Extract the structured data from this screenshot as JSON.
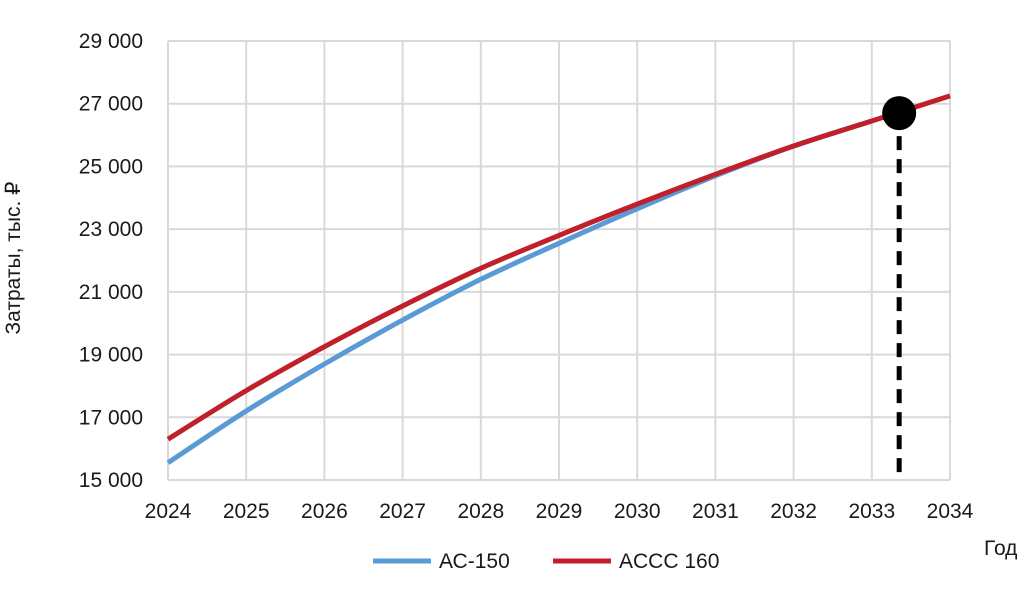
{
  "chart_data": {
    "type": "line",
    "xlabel": "Год",
    "ylabel": "Затраты, тыс. ₽",
    "xlim": [
      2024,
      2034
    ],
    "ylim": [
      15000,
      29000
    ],
    "x_ticks": [
      "2024",
      "2025",
      "2026",
      "2027",
      "2028",
      "2029",
      "2030",
      "2031",
      "2032",
      "2033",
      "2034"
    ],
    "y_ticks": [
      "15 000",
      "17 000",
      "19 000",
      "21 000",
      "23 000",
      "25 000",
      "27 000",
      "29 000"
    ],
    "grid": true,
    "legend_position": "bottom",
    "series": [
      {
        "name": "АС-150",
        "color": "#5b9bd5",
        "x": [
          2024,
          2025,
          2026,
          2027,
          2028,
          2029,
          2030,
          2031,
          2032,
          2033
        ],
        "values": [
          15550,
          17200,
          18700,
          20100,
          21400,
          22550,
          23650,
          24700,
          25650,
          26450
        ]
      },
      {
        "name": "ACCC 160",
        "color": "#c0202a",
        "x": [
          2024,
          2025,
          2026,
          2027,
          2028,
          2029,
          2030,
          2031,
          2032,
          2033,
          2034
        ],
        "values": [
          16300,
          17850,
          19250,
          20550,
          21750,
          22800,
          23800,
          24750,
          25650,
          26450,
          27250
        ]
      }
    ],
    "annotations": [
      {
        "type": "intersection-marker",
        "x": 2033.35,
        "y": 26700,
        "color": "#000000"
      }
    ]
  }
}
